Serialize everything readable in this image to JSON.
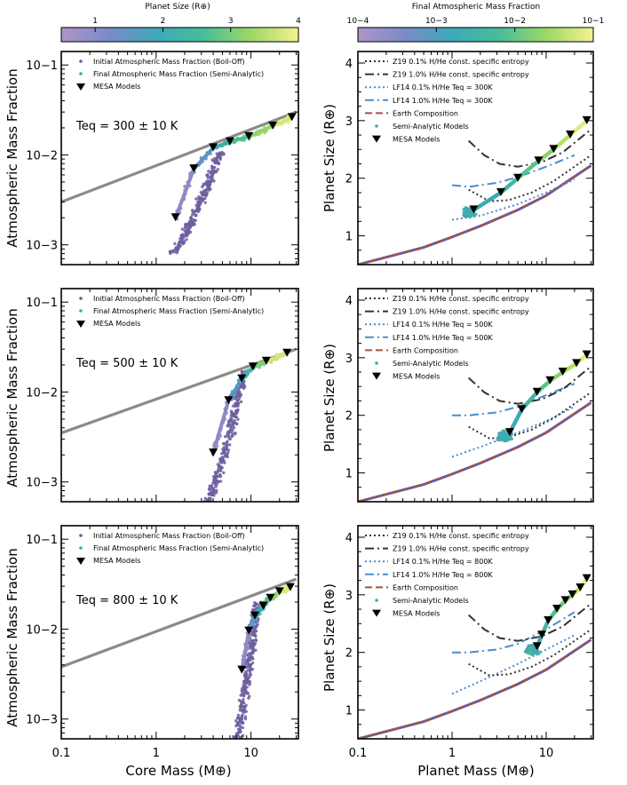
{
  "colorbars": {
    "left": {
      "title": "Planet Size (R⊕)",
      "ticks": [
        "1",
        "2",
        "3",
        "4"
      ],
      "range": [
        0.5,
        4.0
      ]
    },
    "right": {
      "title": "Final Atmospheric Mass Fraction",
      "ticks": [
        "10−4",
        "10−3",
        "10−2",
        "10−1"
      ],
      "range_log10": [
        -4,
        -1
      ]
    }
  },
  "colors": {
    "gray_line": "#8a8a8a",
    "earth": "#9c5548",
    "earth_under": "#6a5aa6",
    "lf14": "#4c8ccb",
    "z19": "#333333",
    "initial_points": "#6d5d9f",
    "viridis": [
      "#a889c2",
      "#6f89c8",
      "#3aaab4",
      "#4fc08d",
      "#a9dc5b",
      "#f4f18c"
    ]
  },
  "axes": {
    "left_ylabel": "Atmospheric Mass Fraction",
    "right_ylabel": "Planet Size (R⊕)",
    "left_xlabel": "Core Mass (M⊕)",
    "right_xlabel": "Planet Mass (M⊕)",
    "x_ticks": [
      "0.1",
      "1",
      "10"
    ],
    "left_y_ticks": [
      "10−3",
      "10−2",
      "10−1"
    ],
    "right_y_ticks": [
      "1",
      "2",
      "3",
      "4"
    ],
    "xlim_log10": [
      -1,
      1.5
    ],
    "left_ylim_log10": [
      -3.22,
      -0.85
    ],
    "right_ylim": [
      0.5,
      4.2
    ]
  },
  "panels": [
    {
      "teq_label": "Teq = 300 ± 10 K",
      "left_legend": [
        "Initial Atmospheric Mass Fraction (Boil-Off)",
        "Final Atmospheric Mass Fraction (Semi-Analytic)",
        "MESA Models"
      ],
      "right_legend": [
        "Z19 0.1% H/He const. specific entropy",
        "Z19 1.0% H/He const. specific entropy",
        "LF14 0.1% H/He Teq = 300K",
        "LF14 1.0% H/He Teq = 300K",
        "Earth Composition",
        "Semi-Analytic Models",
        "MESA Models"
      ]
    },
    {
      "teq_label": "Teq = 500 ± 10 K",
      "left_legend": [
        "Initial Atmospheric Mass Fraction (Boil-Off)",
        "Final Atmospheric Mass Fraction (Semi-Analytic)",
        "MESA Models"
      ],
      "right_legend": [
        "Z19 0.1% H/He const. specific entropy",
        "Z19 1.0% H/He const. specific entropy",
        "LF14 0.1% H/He Teq = 500K",
        "LF14 1.0% H/He Teq = 500K",
        "Earth Composition",
        "Semi-Analytic Models",
        "MESA Models"
      ]
    },
    {
      "teq_label": "Teq = 800 ± 10 K",
      "left_legend": [
        "Initial Atmospheric Mass Fraction (Boil-Off)",
        "Final Atmospheric Mass Fraction (Semi-Analytic)",
        "MESA Models"
      ],
      "right_legend": [
        "Z19 0.1% H/He const. specific entropy",
        "Z19 1.0% H/He const. specific entropy",
        "LF14 0.1% H/He Teq = 800K",
        "LF14 1.0% H/He Teq = 800K",
        "Earth Composition",
        "Semi-Analytic Models",
        "MESA Models"
      ]
    }
  ],
  "chart_data": [
    {
      "type": "scatter",
      "panel": "left-top",
      "title": "Teq = 300 ± 10 K",
      "xlabel": "Core Mass (M⊕)",
      "ylabel": "Atmospheric Mass Fraction",
      "boiloff_line": {
        "x": [
          0.1,
          30
        ],
        "y": [
          0.003,
          0.03
        ]
      },
      "mesa": {
        "x": [
          1.6,
          2.5,
          4,
          6,
          9.5,
          17,
          27
        ],
        "y": [
          0.002,
          0.007,
          0.012,
          0.014,
          0.016,
          0.021,
          0.026
        ]
      },
      "cloud": {
        "xmin": 1.0,
        "xmax": 4.8,
        "ymin": 0.0008,
        "ymax": 0.011
      }
    },
    {
      "type": "scatter",
      "panel": "left-mid",
      "title": "Teq = 500 ± 10 K",
      "xlabel": "Core Mass (M⊕)",
      "ylabel": "Atmospheric Mass Fraction",
      "boiloff_line": {
        "x": [
          0.1,
          30
        ],
        "y": [
          0.0035,
          0.03
        ]
      },
      "mesa": {
        "x": [
          4,
          5.8,
          8,
          10.5,
          14.5,
          24
        ],
        "y": [
          0.0021,
          0.008,
          0.014,
          0.019,
          0.022,
          0.027
        ]
      },
      "cloud": {
        "xmin": 2.6,
        "xmax": 8.5,
        "ymin": 0.0006,
        "ymax": 0.017
      }
    },
    {
      "type": "scatter",
      "panel": "left-bottom",
      "title": "Teq = 800 ± 10 K",
      "xlabel": "Core Mass (M⊕)",
      "ylabel": "Atmospheric Mass Fraction",
      "boiloff_line": {
        "x": [
          0.1,
          30
        ],
        "y": [
          0.0038,
          0.036
        ]
      },
      "mesa": {
        "x": [
          8,
          9.5,
          11,
          13.5,
          16,
          20,
          26
        ],
        "y": [
          0.0035,
          0.0095,
          0.014,
          0.018,
          0.022,
          0.026,
          0.029
        ]
      },
      "cloud": {
        "xmin": 6.0,
        "xmax": 11.5,
        "ymin": 0.0006,
        "ymax": 0.02
      }
    },
    {
      "type": "line",
      "panel": "right-top",
      "title": "Teq = 300 ± 10 K",
      "xlabel": "Planet Mass (M⊕)",
      "ylabel": "Planet Size (R⊕)",
      "z19_01": {
        "x": [
          1.5,
          2.5,
          4,
          7,
          12,
          30
        ],
        "y": [
          1.8,
          1.6,
          1.62,
          1.75,
          1.95,
          2.4
        ]
      },
      "z19_10": {
        "x": [
          1.5,
          2.2,
          3.2,
          5,
          9,
          15,
          30
        ],
        "y": [
          2.65,
          2.4,
          2.25,
          2.2,
          2.28,
          2.45,
          2.85
        ]
      },
      "lf14_01": {
        "x": [
          1,
          2,
          5,
          10,
          20
        ],
        "y": [
          1.28,
          1.35,
          1.55,
          1.75,
          1.98
        ]
      },
      "lf14_10": {
        "x": [
          1,
          1.5,
          3,
          5,
          10,
          20
        ],
        "y": [
          1.88,
          1.85,
          1.92,
          2.02,
          2.2,
          2.4
        ]
      },
      "earth": {
        "x": [
          0.1,
          0.5,
          1,
          2,
          5,
          10,
          30
        ],
        "y": [
          0.5,
          0.8,
          0.98,
          1.17,
          1.45,
          1.7,
          2.22
        ]
      },
      "mesa": {
        "x": [
          1.7,
          3.3,
          5,
          8.3,
          12,
          18,
          27
        ],
        "y": [
          1.45,
          1.75,
          2.0,
          2.3,
          2.5,
          2.75,
          3.0
        ]
      }
    },
    {
      "type": "line",
      "panel": "right-mid",
      "title": "Teq = 500 ± 10 K",
      "xlabel": "Planet Mass (M⊕)",
      "ylabel": "Planet Size (R⊕)",
      "z19_01": {
        "x": [
          1.5,
          2.5,
          4,
          7,
          12,
          30
        ],
        "y": [
          1.8,
          1.6,
          1.62,
          1.75,
          1.95,
          2.4
        ]
      },
      "z19_10": {
        "x": [
          1.5,
          2.2,
          3.2,
          5,
          9,
          15,
          30
        ],
        "y": [
          2.65,
          2.4,
          2.25,
          2.2,
          2.28,
          2.45,
          2.85
        ]
      },
      "lf14_01": {
        "x": [
          1,
          2,
          5,
          10,
          20
        ],
        "y": [
          1.28,
          1.45,
          1.7,
          1.9,
          2.15
        ]
      },
      "lf14_10": {
        "x": [
          1,
          1.5,
          3,
          5,
          10,
          20
        ],
        "y": [
          2.0,
          2.0,
          2.05,
          2.15,
          2.35,
          2.55
        ]
      },
      "earth": {
        "x": [
          0.1,
          0.5,
          1,
          2,
          5,
          10,
          30
        ],
        "y": [
          0.5,
          0.8,
          0.98,
          1.17,
          1.45,
          1.7,
          2.22
        ]
      },
      "mesa": {
        "x": [
          4.1,
          5.5,
          8,
          11,
          15,
          21,
          27
        ],
        "y": [
          1.7,
          2.1,
          2.4,
          2.6,
          2.75,
          2.9,
          3.05
        ]
      }
    },
    {
      "type": "line",
      "panel": "right-bottom",
      "title": "Teq = 800 ± 10 K",
      "xlabel": "Planet Mass (M⊕)",
      "ylabel": "Planet Size (R⊕)",
      "z19_01": {
        "x": [
          1.5,
          2.5,
          4,
          7,
          12,
          30
        ],
        "y": [
          1.8,
          1.6,
          1.62,
          1.75,
          1.95,
          2.4
        ]
      },
      "z19_10": {
        "x": [
          1.5,
          2.2,
          3.2,
          5,
          9,
          15,
          30
        ],
        "y": [
          2.65,
          2.4,
          2.25,
          2.2,
          2.28,
          2.45,
          2.85
        ]
      },
      "lf14_01": {
        "x": [
          1,
          2,
          5,
          10,
          20
        ],
        "y": [
          1.28,
          1.5,
          1.8,
          2.05,
          2.3
        ]
      },
      "lf14_10": {
        "x": [
          1,
          1.5,
          3,
          5,
          10,
          20
        ],
        "y": [
          2.0,
          2.0,
          2.05,
          2.15,
          2.4,
          2.7
        ]
      },
      "earth": {
        "x": [
          0.1,
          0.5,
          1,
          2,
          5,
          10,
          30
        ],
        "y": [
          0.5,
          0.8,
          0.98,
          1.17,
          1.45,
          1.7,
          2.22
        ]
      },
      "mesa": {
        "x": [
          8,
          9,
          10.5,
          13,
          16,
          19,
          23,
          27
        ],
        "y": [
          2.1,
          2.3,
          2.55,
          2.75,
          2.9,
          3.0,
          3.12,
          3.28
        ]
      }
    }
  ]
}
